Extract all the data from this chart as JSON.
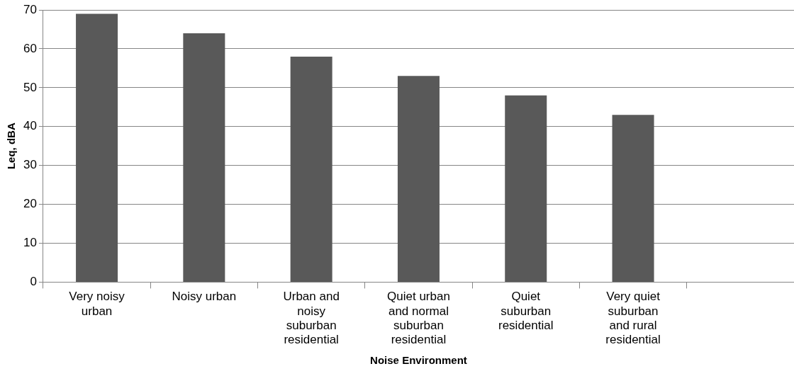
{
  "chart_data": {
    "type": "bar",
    "xlabel": "Noise Environment",
    "ylabel": "Leq, dBA",
    "categories": [
      "Very noisy urban",
      "Noisy urban",
      "Urban and noisy suburban residential",
      "Quiet urban and normal suburban residential",
      "Quiet suburban residential",
      "Very quiet suburban and rural residential",
      null
    ],
    "values": [
      69,
      64,
      58,
      53,
      48,
      43,
      null
    ],
    "color": "#595959",
    "ylim": [
      0,
      70
    ],
    "yticks": [
      0,
      10,
      20,
      30,
      40,
      50,
      60,
      70
    ],
    "grid": "y",
    "legend": false
  }
}
